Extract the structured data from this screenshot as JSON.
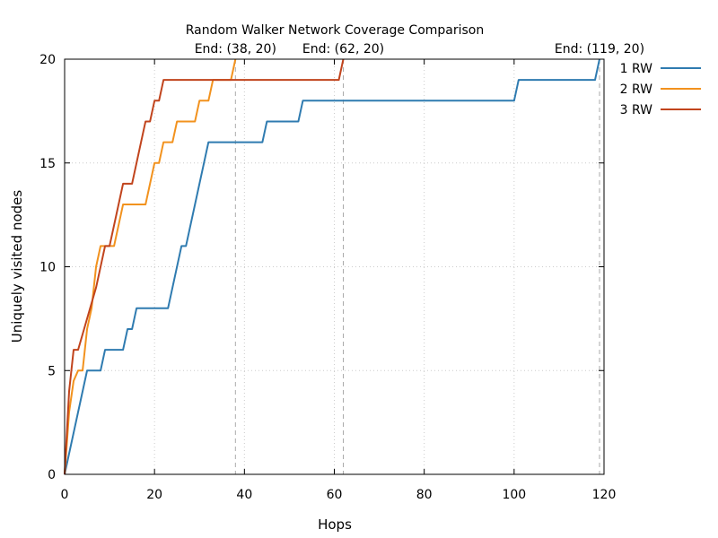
{
  "chart_data": {
    "type": "line",
    "title": "Random Walker Network Coverage Comparison",
    "xlabel": "Hops",
    "ylabel": "Uniquely visited nodes",
    "xlim": [
      0,
      120
    ],
    "ylim": [
      0,
      20
    ],
    "x_ticks": [
      0,
      20,
      40,
      60,
      80,
      100,
      120
    ],
    "y_ticks": [
      0,
      5,
      10,
      15,
      20
    ],
    "grid": true,
    "legend_position": "outside-right",
    "series": [
      {
        "name": "1 RW",
        "color": "#2f7bb0",
        "points": [
          [
            0,
            0
          ],
          [
            5,
            5
          ],
          [
            8,
            5
          ],
          [
            9,
            6
          ],
          [
            13,
            6
          ],
          [
            14,
            7
          ],
          [
            15,
            7
          ],
          [
            16,
            8
          ],
          [
            23,
            8
          ],
          [
            26,
            11
          ],
          [
            27,
            11
          ],
          [
            32,
            16
          ],
          [
            44,
            16
          ],
          [
            45,
            17
          ],
          [
            52,
            17
          ],
          [
            53,
            18
          ],
          [
            100,
            18
          ],
          [
            101,
            19
          ],
          [
            118,
            19
          ],
          [
            119,
            20
          ]
        ]
      },
      {
        "name": "2 RW",
        "color": "#f2921e",
        "points": [
          [
            0,
            0
          ],
          [
            1,
            3
          ],
          [
            2,
            4.5
          ],
          [
            3,
            5
          ],
          [
            4,
            5
          ],
          [
            5,
            7
          ],
          [
            6,
            8
          ],
          [
            7,
            10
          ],
          [
            8,
            11
          ],
          [
            10,
            11
          ],
          [
            11,
            11
          ],
          [
            13,
            13
          ],
          [
            18,
            13
          ],
          [
            20,
            15
          ],
          [
            21,
            15
          ],
          [
            22,
            16
          ],
          [
            24,
            16
          ],
          [
            25,
            17
          ],
          [
            29,
            17
          ],
          [
            30,
            18
          ],
          [
            32,
            18
          ],
          [
            33,
            19
          ],
          [
            37,
            19
          ],
          [
            38,
            20
          ]
        ]
      },
      {
        "name": "3 RW",
        "color": "#c1441d",
        "points": [
          [
            0,
            0
          ],
          [
            1,
            4
          ],
          [
            2,
            6
          ],
          [
            3,
            6
          ],
          [
            7,
            9
          ],
          [
            9,
            11
          ],
          [
            10,
            11
          ],
          [
            13,
            14
          ],
          [
            15,
            14
          ],
          [
            17,
            16
          ],
          [
            18,
            17
          ],
          [
            19,
            17
          ],
          [
            20,
            18
          ],
          [
            21,
            18
          ],
          [
            22,
            19
          ],
          [
            61,
            19
          ],
          [
            62,
            20
          ]
        ]
      }
    ],
    "annotations": [
      {
        "x": 38,
        "y": 20,
        "text": "End: (38, 20)"
      },
      {
        "x": 62,
        "y": 20,
        "text": "End: (62, 20)"
      },
      {
        "x": 119,
        "y": 20,
        "text": "End: (119, 20)"
      }
    ]
  }
}
